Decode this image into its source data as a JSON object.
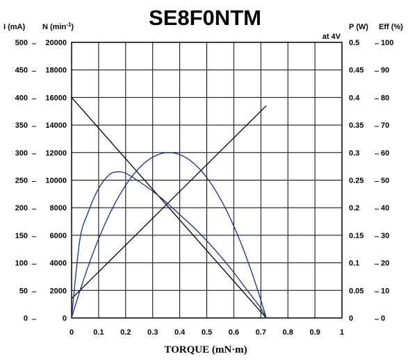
{
  "chart_data": {
    "type": "line",
    "title": "SE8F0NTM",
    "condition": "at 4V",
    "xlabel": "TORQUE (mN·m)",
    "xlim": [
      0,
      1
    ],
    "x_ticks": [
      "0",
      "0.1",
      "0.2",
      "0.3",
      "0.4",
      "0.5",
      "0.6",
      "0.7",
      "0.8",
      "0.9",
      "1"
    ],
    "grid": true,
    "axes": {
      "current": {
        "label": "I (mA)",
        "range": [
          0,
          500
        ],
        "ticks": [
          "0",
          "50",
          "100",
          "150",
          "200",
          "250",
          "300",
          "350",
          "400",
          "450",
          "500"
        ]
      },
      "speed": {
        "label": "N (min",
        "label_sup": "-1",
        "label_end": ")",
        "range": [
          0,
          20000
        ],
        "ticks": [
          "0",
          "2000",
          "4000",
          "6000",
          "8000",
          "10000",
          "12000",
          "14000",
          "16000",
          "18000",
          "20000"
        ]
      },
      "power": {
        "label": "P (W)",
        "range": [
          0,
          0.5
        ],
        "ticks": [
          "0",
          "0.05",
          "0.1",
          "0.15",
          "0.2",
          "0.25",
          "0.3",
          "0.35",
          "0.4",
          "0.45",
          "0.5"
        ]
      },
      "efficiency": {
        "label": "Eff (%)",
        "range": [
          0,
          100
        ],
        "ticks": [
          "0",
          "10",
          "20",
          "30",
          "40",
          "50",
          "60",
          "70",
          "80",
          "90",
          "100"
        ]
      }
    },
    "series": [
      {
        "axis": "speed",
        "color": "#000000",
        "curve": "line",
        "x": [
          0,
          0.72
        ],
        "y": [
          16000,
          0
        ]
      },
      {
        "axis": "current",
        "color": "#000000",
        "curve": "line",
        "x": [
          0,
          0.72
        ],
        "y": [
          35,
          385
        ]
      },
      {
        "axis": "power",
        "color": "#1a2a8a",
        "curve": "parabola",
        "x": [
          0,
          0.36,
          0.72
        ],
        "y": [
          0,
          0.3,
          0
        ]
      },
      {
        "axis": "efficiency",
        "color": "#1a2a8a",
        "curve": "smooth",
        "x": [
          0,
          0.03,
          0.06,
          0.1,
          0.14,
          0.17,
          0.2,
          0.25,
          0.3,
          0.35,
          0.4,
          0.45,
          0.5,
          0.55,
          0.6,
          0.65,
          0.7,
          0.72
        ],
        "y": [
          0,
          28,
          38,
          47,
          52,
          53,
          52.5,
          49.5,
          46,
          42,
          37.5,
          33,
          28,
          22.5,
          16.5,
          10,
          3.5,
          0
        ]
      }
    ]
  }
}
